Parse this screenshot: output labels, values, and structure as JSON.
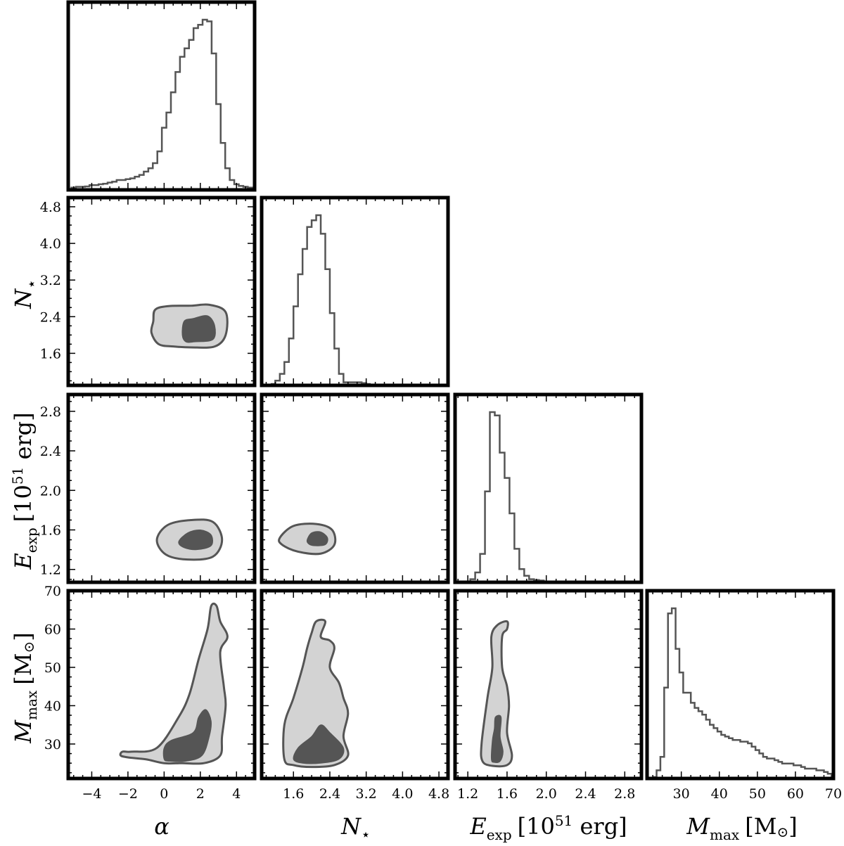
{
  "chart_data": {
    "type": "corner",
    "parameters": [
      {
        "id": "alpha",
        "label": "α",
        "range": [
          -5.3,
          5.0
        ],
        "ticks": [
          -4,
          -2,
          0,
          2,
          4
        ],
        "tick_labels": [
          "−4",
          "−2",
          "0",
          "2",
          "4"
        ]
      },
      {
        "id": "nstar",
        "label": "N⋆",
        "range": [
          0.9,
          5.0
        ],
        "ticks": [
          1.6,
          2.4,
          3.2,
          4.0,
          4.8
        ],
        "tick_labels": [
          "1.6",
          "2.4",
          "3.2",
          "4.0",
          "4.8"
        ]
      },
      {
        "id": "eexp",
        "label": "E_exp [10^51 erg]",
        "range": [
          1.07,
          2.97
        ],
        "ticks": [
          1.2,
          1.6,
          2.0,
          2.4,
          2.8
        ],
        "tick_labels": [
          "1.2",
          "1.6",
          "2.0",
          "2.4",
          "2.8"
        ]
      },
      {
        "id": "mmax",
        "label": "M_max [M⊙]",
        "range": [
          21,
          70
        ],
        "ticks": [
          30,
          40,
          50,
          60,
          70
        ],
        "tick_labels": [
          "30",
          "40",
          "50",
          "60",
          "70"
        ]
      }
    ],
    "axis_labels": {
      "alpha": "α",
      "nstar_main": "N",
      "nstar_sub": "⋆",
      "eexp_main": "E",
      "eexp_sub": "exp",
      "eexp_unit": "[10",
      "eexp_exp": "51",
      "eexp_unit2": " erg]",
      "mmax_main": "M",
      "mmax_sub": "max",
      "mmax_unit": "[M",
      "mmax_sun": "⊙",
      "mmax_close": "]"
    },
    "histograms": {
      "alpha": {
        "bin_width": 0.25,
        "x": [
          -5.0,
          -4.75,
          -4.5,
          -4.25,
          -4.0,
          -3.75,
          -3.5,
          -3.25,
          -3.0,
          -2.75,
          -2.5,
          -2.25,
          -2.0,
          -1.75,
          -1.5,
          -1.25,
          -1.0,
          -0.75,
          -0.5,
          -0.25,
          0.0,
          0.25,
          0.5,
          0.75,
          1.0,
          1.25,
          1.5,
          1.75,
          2.0,
          2.25,
          2.5,
          2.75,
          3.0,
          3.25,
          3.5,
          3.75,
          4.0,
          4.25,
          4.5,
          4.75
        ],
        "values": [
          0.005,
          0.01,
          0.01,
          0.012,
          0.02,
          0.02,
          0.025,
          0.028,
          0.035,
          0.04,
          0.05,
          0.05,
          0.055,
          0.06,
          0.07,
          0.08,
          0.1,
          0.12,
          0.15,
          0.22,
          0.36,
          0.45,
          0.57,
          0.69,
          0.78,
          0.83,
          0.88,
          0.95,
          0.97,
          1.0,
          0.99,
          0.8,
          0.5,
          0.27,
          0.12,
          0.05,
          0.025,
          0.015,
          0.01,
          0.005
        ]
      },
      "nstar": {
        "bin_width": 0.1,
        "x": [
          1.15,
          1.25,
          1.35,
          1.45,
          1.55,
          1.65,
          1.75,
          1.85,
          1.95,
          2.05,
          2.15,
          2.25,
          2.35,
          2.45,
          2.55,
          2.65,
          2.75,
          2.85,
          2.95,
          3.05,
          3.15,
          3.25
        ],
        "values": [
          0.0,
          0.02,
          0.06,
          0.13,
          0.27,
          0.46,
          0.65,
          0.8,
          0.93,
          0.97,
          1.0,
          0.89,
          0.68,
          0.42,
          0.21,
          0.06,
          0.01,
          0.01,
          0.01,
          0.01,
          0.005,
          0.0
        ]
      },
      "eexp": {
        "bin_width": 0.05,
        "x": [
          1.25,
          1.3,
          1.35,
          1.4,
          1.45,
          1.5,
          1.55,
          1.6,
          1.65,
          1.7,
          1.75,
          1.8,
          1.85,
          1.9,
          1.95
        ],
        "values": [
          0.01,
          0.05,
          0.16,
          0.53,
          1.0,
          0.98,
          0.76,
          0.61,
          0.4,
          0.19,
          0.07,
          0.03,
          0.01,
          0.005,
          0.002
        ]
      },
      "mmax": {
        "bin_width": 1.0,
        "x": [
          23,
          24,
          25,
          26,
          27,
          28,
          29,
          30,
          31,
          32,
          33,
          34,
          35,
          36,
          37,
          38,
          39,
          40,
          41,
          42,
          43,
          44,
          45,
          46,
          47,
          48,
          49,
          50,
          51,
          52,
          53,
          54,
          55,
          56,
          57,
          58,
          59,
          60,
          61,
          62,
          63,
          64,
          65,
          66,
          67,
          68,
          69
        ],
        "values": [
          0.0,
          0.04,
          0.12,
          0.53,
          0.97,
          1.0,
          0.76,
          0.62,
          0.5,
          0.5,
          0.44,
          0.41,
          0.39,
          0.37,
          0.34,
          0.31,
          0.29,
          0.27,
          0.25,
          0.24,
          0.23,
          0.22,
          0.22,
          0.21,
          0.21,
          0.2,
          0.18,
          0.16,
          0.14,
          0.12,
          0.11,
          0.11,
          0.1,
          0.09,
          0.08,
          0.08,
          0.08,
          0.07,
          0.07,
          0.06,
          0.05,
          0.05,
          0.05,
          0.04,
          0.04,
          0.03,
          0.02
        ]
      }
    },
    "contours": [
      {
        "x": "alpha",
        "y": "nstar",
        "outer": [
          [
            -0.6,
            2.3
          ],
          [
            -0.5,
            2.55
          ],
          [
            0.2,
            2.63
          ],
          [
            1.5,
            2.64
          ],
          [
            2.5,
            2.66
          ],
          [
            3.4,
            2.5
          ],
          [
            3.4,
            2.0
          ],
          [
            2.8,
            1.75
          ],
          [
            1.5,
            1.73
          ],
          [
            0.5,
            1.75
          ],
          [
            -0.3,
            1.8
          ],
          [
            -0.7,
            2.05
          ]
        ],
        "inner": [
          [
            1.0,
            2.0
          ],
          [
            1.1,
            2.3
          ],
          [
            1.6,
            2.36
          ],
          [
            2.4,
            2.42
          ],
          [
            2.8,
            2.2
          ],
          [
            2.7,
            1.9
          ],
          [
            1.7,
            1.85
          ],
          [
            1.2,
            1.85
          ]
        ]
      },
      {
        "x": "alpha",
        "y": "eexp",
        "outer": [
          [
            -0.4,
            1.5
          ],
          [
            0.2,
            1.65
          ],
          [
            1.5,
            1.7
          ],
          [
            2.7,
            1.68
          ],
          [
            3.2,
            1.5
          ],
          [
            2.7,
            1.33
          ],
          [
            1.3,
            1.3
          ],
          [
            0.1,
            1.35
          ]
        ],
        "inner": [
          [
            0.8,
            1.48
          ],
          [
            1.3,
            1.57
          ],
          [
            2.0,
            1.6
          ],
          [
            2.6,
            1.55
          ],
          [
            2.6,
            1.44
          ],
          [
            1.8,
            1.4
          ],
          [
            1.1,
            1.42
          ]
        ]
      },
      {
        "x": "nstar",
        "y": "eexp",
        "outer": [
          [
            1.3,
            1.52
          ],
          [
            1.6,
            1.64
          ],
          [
            2.1,
            1.66
          ],
          [
            2.45,
            1.6
          ],
          [
            2.5,
            1.45
          ],
          [
            2.2,
            1.36
          ],
          [
            1.7,
            1.38
          ],
          [
            1.35,
            1.45
          ]
        ],
        "inner": [
          [
            1.9,
            1.5
          ],
          [
            2.0,
            1.57
          ],
          [
            2.2,
            1.58
          ],
          [
            2.35,
            1.52
          ],
          [
            2.3,
            1.45
          ],
          [
            2.05,
            1.44
          ],
          [
            1.93,
            1.46
          ]
        ]
      },
      {
        "x": "alpha",
        "y": "mmax",
        "outer": [
          [
            -2.4,
            27
          ],
          [
            -2.3,
            28
          ],
          [
            -1.8,
            28
          ],
          [
            -0.4,
            29
          ],
          [
            0.8,
            37
          ],
          [
            1.4,
            43
          ],
          [
            1.9,
            52
          ],
          [
            2.4,
            60
          ],
          [
            2.6,
            66
          ],
          [
            2.9,
            66
          ],
          [
            3.1,
            62
          ],
          [
            3.5,
            58
          ],
          [
            3.1,
            54
          ],
          [
            3.3,
            45
          ],
          [
            3.4,
            40
          ],
          [
            3.2,
            32
          ],
          [
            3.1,
            27
          ],
          [
            2.2,
            25
          ],
          [
            1.0,
            25
          ],
          [
            0.0,
            25
          ],
          [
            -1.0,
            26
          ],
          [
            -2.0,
            26.5
          ]
        ],
        "inner": [
          [
            0.0,
            26
          ],
          [
            0.0,
            29
          ],
          [
            0.4,
            31
          ],
          [
            1.6,
            33
          ],
          [
            1.9,
            37
          ],
          [
            2.3,
            39
          ],
          [
            2.6,
            36
          ],
          [
            2.5,
            32
          ],
          [
            2.1,
            27
          ],
          [
            1.2,
            25.5
          ],
          [
            0.3,
            25.5
          ]
        ]
      },
      {
        "x": "nstar",
        "y": "mmax",
        "outer": [
          [
            1.4,
            26
          ],
          [
            1.4,
            35
          ],
          [
            1.6,
            42
          ],
          [
            1.8,
            50
          ],
          [
            1.9,
            55
          ],
          [
            2.0,
            59
          ],
          [
            2.1,
            62
          ],
          [
            2.3,
            62
          ],
          [
            2.2,
            58
          ],
          [
            2.4,
            57
          ],
          [
            2.5,
            55
          ],
          [
            2.4,
            50
          ],
          [
            2.6,
            46
          ],
          [
            2.7,
            42
          ],
          [
            2.8,
            38
          ],
          [
            2.7,
            32
          ],
          [
            2.8,
            27
          ],
          [
            2.5,
            24.5
          ],
          [
            2.0,
            24
          ],
          [
            1.6,
            24.5
          ]
        ],
        "inner": [
          [
            1.6,
            26
          ],
          [
            1.7,
            29
          ],
          [
            2.0,
            32
          ],
          [
            2.2,
            35
          ],
          [
            2.4,
            33
          ],
          [
            2.7,
            29
          ],
          [
            2.6,
            26
          ],
          [
            2.2,
            25
          ],
          [
            1.8,
            25
          ]
        ]
      },
      {
        "x": "eexp",
        "y": "mmax",
        "outer": [
          [
            1.35,
            25.5
          ],
          [
            1.34,
            30
          ],
          [
            1.4,
            42
          ],
          [
            1.45,
            50
          ],
          [
            1.44,
            58
          ],
          [
            1.5,
            61
          ],
          [
            1.6,
            62
          ],
          [
            1.6,
            60
          ],
          [
            1.55,
            58
          ],
          [
            1.55,
            50
          ],
          [
            1.6,
            45
          ],
          [
            1.62,
            40
          ],
          [
            1.6,
            33
          ],
          [
            1.65,
            27
          ],
          [
            1.6,
            24.5
          ],
          [
            1.45,
            24.3
          ]
        ],
        "inner": [
          [
            1.44,
            26
          ],
          [
            1.45,
            31
          ],
          [
            1.47,
            34
          ],
          [
            1.48,
            37
          ],
          [
            1.54,
            37
          ],
          [
            1.53,
            32
          ],
          [
            1.56,
            28
          ],
          [
            1.53,
            25.5
          ],
          [
            1.47,
            25.2
          ]
        ]
      }
    ]
  }
}
